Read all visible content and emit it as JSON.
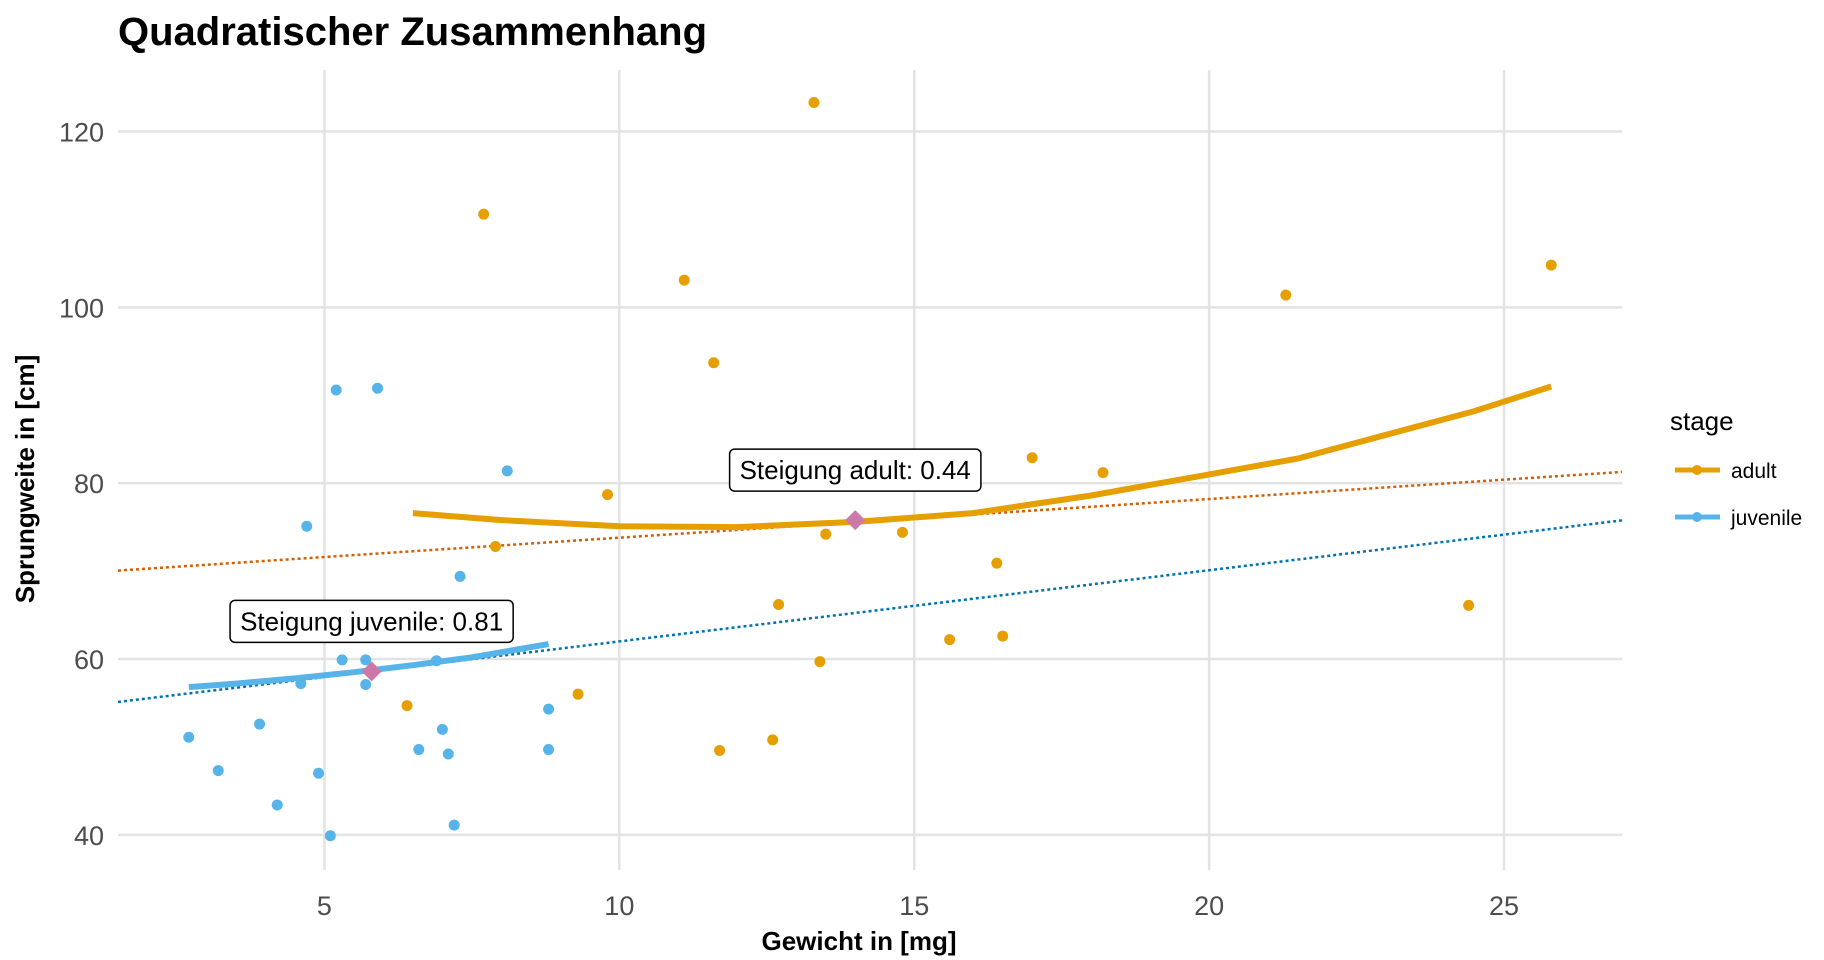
{
  "chart_data": {
    "type": "scatter",
    "title": "Quadratischer Zusammenhang",
    "xlabel": "Gewicht in [mg]",
    "ylabel": "Sprungweite in [cm]",
    "xlim": [
      1.5,
      27
    ],
    "ylim": [
      36,
      127
    ],
    "x_ticks": [
      5,
      10,
      15,
      20,
      25
    ],
    "y_ticks": [
      40,
      60,
      80,
      100,
      120
    ],
    "grid": true,
    "legend": {
      "title": "stage",
      "position": "right"
    },
    "colors": {
      "adult": "#E69F00",
      "juvenile": "#56B4E9",
      "adult_linear": "#D55E00",
      "juvenile_linear": "#0072B2",
      "center_point": "#CC79A7"
    },
    "series": [
      {
        "name": "adult",
        "points": [
          [
            6.4,
            54.7
          ],
          [
            7.7,
            110.6
          ],
          [
            7.9,
            72.8
          ],
          [
            9.3,
            56.0
          ],
          [
            9.8,
            78.7
          ],
          [
            11.1,
            103.1
          ],
          [
            11.6,
            93.7
          ],
          [
            11.7,
            49.6
          ],
          [
            12.6,
            50.8
          ],
          [
            12.7,
            66.2
          ],
          [
            13.3,
            123.3
          ],
          [
            13.4,
            59.7
          ],
          [
            13.5,
            74.2
          ],
          [
            14.8,
            74.4
          ],
          [
            15.6,
            62.2
          ],
          [
            16.4,
            70.9
          ],
          [
            16.5,
            62.6
          ],
          [
            17.0,
            82.9
          ],
          [
            18.2,
            81.2
          ],
          [
            21.3,
            101.4
          ],
          [
            24.4,
            66.1
          ],
          [
            25.8,
            104.8
          ]
        ],
        "quadratic_fit": [
          [
            6.5,
            76.6
          ],
          [
            8,
            75.8
          ],
          [
            10,
            75.1
          ],
          [
            12,
            75.0
          ],
          [
            14,
            75.6
          ],
          [
            16,
            76.6
          ],
          [
            18,
            78.6
          ],
          [
            20,
            81.0
          ],
          [
            21.5,
            82.8
          ],
          [
            23,
            85.5
          ],
          [
            24.5,
            88.2
          ],
          [
            25.8,
            91.0
          ]
        ],
        "linear_fit": {
          "slope": 0.44,
          "intercept": 69.4
        },
        "center": [
          14.0,
          75.8
        ],
        "annotation": "Steigung adult: 0.44"
      },
      {
        "name": "juvenile",
        "points": [
          [
            2.7,
            51.1
          ],
          [
            3.2,
            47.3
          ],
          [
            3.9,
            52.6
          ],
          [
            4.2,
            43.4
          ],
          [
            4.6,
            57.2
          ],
          [
            4.7,
            75.1
          ],
          [
            4.9,
            47.0
          ],
          [
            5.1,
            39.9
          ],
          [
            5.2,
            90.6
          ],
          [
            5.3,
            59.9
          ],
          [
            5.7,
            59.9
          ],
          [
            5.7,
            57.1
          ],
          [
            5.9,
            90.8
          ],
          [
            6.6,
            49.7
          ],
          [
            6.9,
            59.8
          ],
          [
            7.0,
            52.0
          ],
          [
            7.1,
            49.2
          ],
          [
            7.2,
            41.1
          ],
          [
            7.3,
            69.4
          ],
          [
            8.1,
            81.4
          ],
          [
            8.8,
            54.3
          ],
          [
            8.8,
            49.7
          ]
        ],
        "quadratic_fit": [
          [
            2.7,
            56.8
          ],
          [
            3.5,
            57.2
          ],
          [
            4.5,
            57.8
          ],
          [
            5.5,
            58.5
          ],
          [
            6.5,
            59.3
          ],
          [
            7.5,
            60.2
          ],
          [
            8.8,
            61.7
          ]
        ],
        "linear_fit": {
          "slope": 0.81,
          "intercept": 53.9
        },
        "center": [
          5.8,
          58.6
        ],
        "annotation": "Steigung juvenile: 0.81"
      }
    ]
  }
}
